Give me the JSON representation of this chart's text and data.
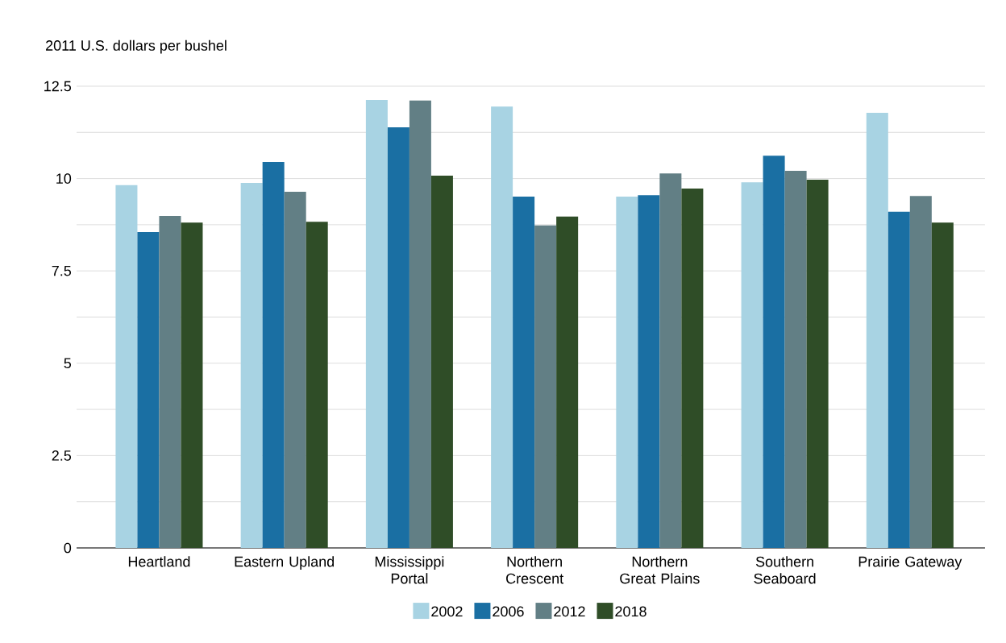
{
  "chart_data": {
    "type": "bar",
    "ylabel": "2011 U.S. dollars per bushel",
    "categories": [
      "Heartland",
      "Eastern Upland",
      "Mississippi Portal",
      "Northern Crescent",
      "Northern Great Plains",
      "Southern Seaboard",
      "Prairie Gateway"
    ],
    "series": [
      {
        "name": "2002",
        "color": "#a8d3e3",
        "values": [
          9.82,
          9.88,
          12.13,
          11.95,
          9.51,
          9.9,
          11.78
        ]
      },
      {
        "name": "2006",
        "color": "#1a6fa3",
        "values": [
          8.55,
          10.45,
          11.39,
          9.51,
          9.55,
          10.62,
          9.1
        ]
      },
      {
        "name": "2012",
        "color": "#627f85",
        "values": [
          8.99,
          9.64,
          12.11,
          8.73,
          10.14,
          10.21,
          9.53
        ]
      },
      {
        "name": "2018",
        "color": "#2f4d27",
        "values": [
          8.81,
          8.83,
          10.08,
          8.97,
          9.73,
          9.97,
          8.81
        ]
      }
    ],
    "ylim": [
      0,
      12.5
    ],
    "yticks": [
      0,
      {
        "value": 1.25,
        "label": null
      },
      2.5,
      {
        "value": 3.75,
        "label": null
      },
      5,
      {
        "value": 6.25,
        "label": null
      },
      7.5,
      {
        "value": 8.75,
        "label": null
      },
      10,
      {
        "value": 11.25,
        "label": null
      },
      12.5
    ],
    "grid": "y",
    "legend": "bottom"
  }
}
